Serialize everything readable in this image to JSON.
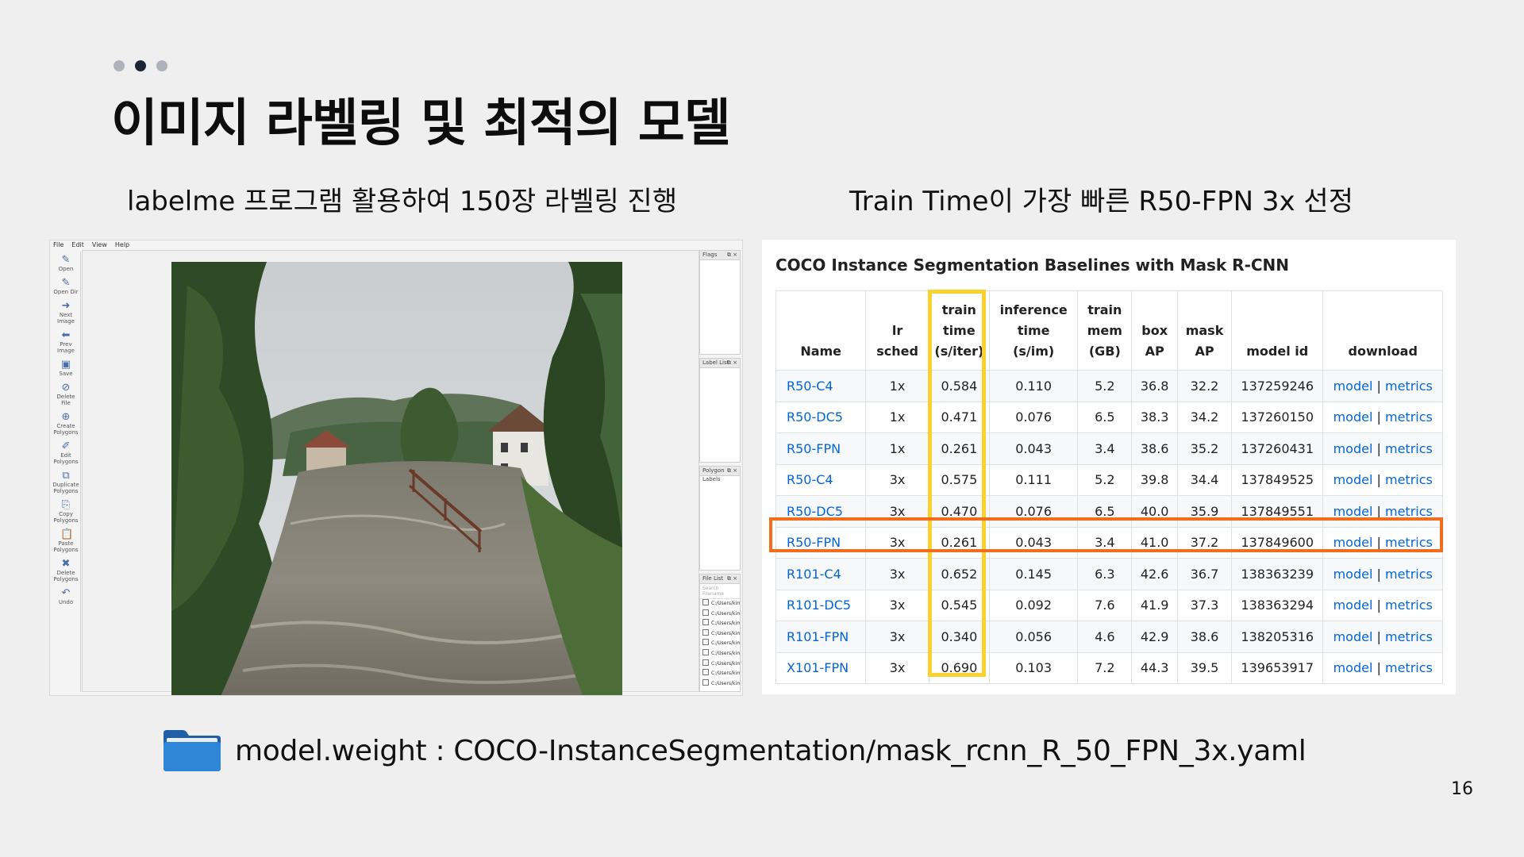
{
  "slide": {
    "title": "이미지 라벨링 및 최적의 모델",
    "subtitle_left": "labelme 프로그램 활용하여 150장 라벨링 진행",
    "subtitle_right": "Train Time이 가장 빠른 R50-FPN 3x 선정",
    "model_weight": "model.weight : COCO-InstanceSegmentation/mask_rcnn_R_50_FPN_3x.yaml",
    "page_number": "16"
  },
  "labelme": {
    "menu": [
      "File",
      "Edit",
      "View",
      "Help"
    ],
    "tools": [
      {
        "label": "Open",
        "icon": "open-icon"
      },
      {
        "label": "Open Dir",
        "icon": "open-dir-icon"
      },
      {
        "label": "Next Image",
        "icon": "next-image-icon"
      },
      {
        "label": "Prev Image",
        "icon": "prev-image-icon"
      },
      {
        "label": "Save",
        "icon": "save-icon"
      },
      {
        "label": "Delete File",
        "icon": "delete-file-icon"
      },
      {
        "label": "Create Polygons",
        "icon": "create-polygons-icon"
      },
      {
        "label": "Edit Polygons",
        "icon": "edit-polygons-icon"
      },
      {
        "label": "Duplicate Polygons",
        "icon": "duplicate-polygons-icon"
      },
      {
        "label": "Copy Polygons",
        "icon": "copy-polygons-icon"
      },
      {
        "label": "Paste Polygons",
        "icon": "paste-polygons-icon"
      },
      {
        "label": "Delete Polygons",
        "icon": "delete-polygons-icon"
      },
      {
        "label": "Undo",
        "icon": "undo-icon"
      }
    ],
    "panels": {
      "flags": "Flags",
      "label_list": "Label List",
      "polygon_labels": "Polygon Labels",
      "file_list": "File List",
      "search_placeholder": "Search Filename"
    },
    "files": [
      "C:/Users/kimhy/Desktop/proje",
      "C:/Users/kimhy/Desktop/proje",
      "C:/Users/kimhy/Desktop/proje",
      "C:/Users/kimhy/Desktop/proje",
      "C:/Users/kimhy/Desktop/proje",
      "C:/Users/kimhy/Desktop/proje",
      "C:/Users/kimhy/Desktop/proje",
      "C:/Users/kimhy/Desktop/proje",
      "C:/Users/kimhy/Desktop/proje"
    ]
  },
  "coco": {
    "title": "COCO Instance Segmentation Baselines with Mask R-CNN",
    "headers": [
      [
        "Name"
      ],
      [
        "lr",
        "sched"
      ],
      [
        "train",
        "time",
        "(s/iter)"
      ],
      [
        "inference",
        "time",
        "(s/im)"
      ],
      [
        "train",
        "mem",
        "(GB)"
      ],
      [
        "box",
        "AP"
      ],
      [
        "mask",
        "AP"
      ],
      [
        "model id"
      ],
      [
        "download"
      ]
    ],
    "rows": [
      {
        "name": "R50-C4",
        "sched": "1x",
        "train_time": "0.584",
        "inf_time": "0.110",
        "mem": "5.2",
        "box_ap": "36.8",
        "mask_ap": "32.2",
        "model_id": "137259246"
      },
      {
        "name": "R50-DC5",
        "sched": "1x",
        "train_time": "0.471",
        "inf_time": "0.076",
        "mem": "6.5",
        "box_ap": "38.3",
        "mask_ap": "34.2",
        "model_id": "137260150"
      },
      {
        "name": "R50-FPN",
        "sched": "1x",
        "train_time": "0.261",
        "inf_time": "0.043",
        "mem": "3.4",
        "box_ap": "38.6",
        "mask_ap": "35.2",
        "model_id": "137260431"
      },
      {
        "name": "R50-C4",
        "sched": "3x",
        "train_time": "0.575",
        "inf_time": "0.111",
        "mem": "5.2",
        "box_ap": "39.8",
        "mask_ap": "34.4",
        "model_id": "137849525"
      },
      {
        "name": "R50-DC5",
        "sched": "3x",
        "train_time": "0.470",
        "inf_time": "0.076",
        "mem": "6.5",
        "box_ap": "40.0",
        "mask_ap": "35.9",
        "model_id": "137849551"
      },
      {
        "name": "R50-FPN",
        "sched": "3x",
        "train_time": "0.261",
        "inf_time": "0.043",
        "mem": "3.4",
        "box_ap": "41.0",
        "mask_ap": "37.2",
        "model_id": "137849600"
      },
      {
        "name": "R101-C4",
        "sched": "3x",
        "train_time": "0.652",
        "inf_time": "0.145",
        "mem": "6.3",
        "box_ap": "42.6",
        "mask_ap": "36.7",
        "model_id": "138363239"
      },
      {
        "name": "R101-DC5",
        "sched": "3x",
        "train_time": "0.545",
        "inf_time": "0.092",
        "mem": "7.6",
        "box_ap": "41.9",
        "mask_ap": "37.3",
        "model_id": "138363294"
      },
      {
        "name": "R101-FPN",
        "sched": "3x",
        "train_time": "0.340",
        "inf_time": "0.056",
        "mem": "4.6",
        "box_ap": "42.9",
        "mask_ap": "38.6",
        "model_id": "138205316"
      },
      {
        "name": "X101-FPN",
        "sched": "3x",
        "train_time": "0.690",
        "inf_time": "0.103",
        "mem": "7.2",
        "box_ap": "44.3",
        "mask_ap": "39.5",
        "model_id": "139653917"
      }
    ],
    "download_model": "model",
    "download_sep": "|",
    "download_metrics": "metrics",
    "highlighted_column": "train time (s/iter)",
    "highlighted_row": "R50-FPN 3x"
  },
  "colors": {
    "background": "#efefef",
    "dot_active": "#1c2536",
    "dot_inactive": "#aeb3bb",
    "link": "#0366d6",
    "highlight_column": "#fbd12f",
    "highlight_row": "#f26d1e"
  }
}
